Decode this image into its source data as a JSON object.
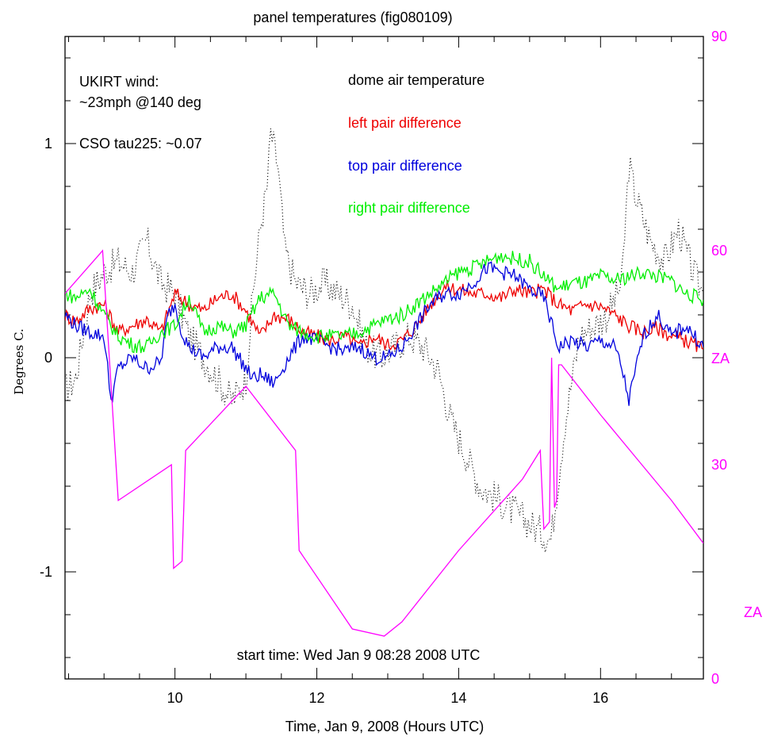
{
  "chart_data": {
    "type": "line",
    "title": "panel temperatures (fig080109)",
    "xlabel": "Time, Jan 9, 2008 (Hours UTC)",
    "ylabel": "Degrees C.",
    "y2label": "ZA",
    "xlim": [
      8.45,
      17.45
    ],
    "ylim": [
      -1.5,
      1.5
    ],
    "y2lim": [
      0,
      90
    ],
    "x_ticks": [
      10,
      12,
      14,
      16
    ],
    "y_ticks": [
      1,
      0,
      -1
    ],
    "y2_ticks": [
      90,
      60,
      30,
      0
    ],
    "colors": {
      "dome": "#000000",
      "left": "#ee0000",
      "top": "#0000dd",
      "right": "#00ee00",
      "za": "#ff00ff"
    },
    "annotations": {
      "wind_line1": "UKIRT wind:",
      "wind_line2": "~23mph @140 deg",
      "tau": "CSO tau225: ~0.07",
      "start_time": "start time: Wed Jan  9 08:28 2008 UTC",
      "za_right_label": "ZA"
    },
    "series": [
      {
        "name": "dome air temperature",
        "style": "dotted",
        "color": "#000000",
        "axis": "left",
        "x": [
          8.45,
          8.6,
          8.8,
          9.0,
          9.2,
          9.4,
          9.6,
          9.8,
          10.0,
          10.2,
          10.4,
          10.6,
          10.8,
          11.0,
          11.1,
          11.2,
          11.3,
          11.35,
          11.45,
          11.55,
          11.7,
          11.9,
          12.1,
          12.3,
          12.5,
          12.7,
          12.9,
          13.1,
          13.3,
          13.5,
          13.7,
          13.9,
          14.1,
          14.3,
          14.5,
          14.7,
          14.9,
          15.1,
          15.3,
          15.5,
          15.7,
          15.9,
          16.1,
          16.3,
          16.4,
          16.5,
          16.7,
          16.9,
          17.1,
          17.3,
          17.45
        ],
        "values": [
          -0.15,
          -0.1,
          0.3,
          0.4,
          0.45,
          0.4,
          0.55,
          0.35,
          0.3,
          0.1,
          0.0,
          -0.1,
          -0.2,
          -0.1,
          0.3,
          0.6,
          0.8,
          1.05,
          0.9,
          0.5,
          0.35,
          0.3,
          0.35,
          0.3,
          0.25,
          0.05,
          0.0,
          0.05,
          0.1,
          0.05,
          -0.05,
          -0.3,
          -0.45,
          -0.6,
          -0.65,
          -0.7,
          -0.75,
          -0.8,
          -0.85,
          -0.3,
          0.1,
          0.15,
          0.2,
          0.35,
          0.9,
          0.75,
          0.55,
          0.45,
          0.6,
          0.4,
          0.3
        ]
      },
      {
        "name": "left pair difference",
        "style": "solid",
        "color": "#ee0000",
        "axis": "left",
        "x": [
          8.45,
          8.6,
          8.8,
          9.0,
          9.2,
          9.4,
          9.6,
          9.8,
          10.0,
          10.2,
          10.4,
          10.6,
          10.8,
          11.0,
          11.2,
          11.4,
          11.6,
          11.8,
          12.0,
          12.2,
          12.4,
          12.6,
          12.8,
          13.0,
          13.2,
          13.4,
          13.6,
          13.8,
          14.0,
          14.2,
          14.4,
          14.6,
          14.8,
          15.0,
          15.2,
          15.4,
          15.6,
          15.8,
          16.0,
          16.2,
          16.4,
          16.6,
          16.8,
          17.0,
          17.2,
          17.45
        ],
        "values": [
          0.2,
          0.17,
          0.23,
          0.25,
          0.12,
          0.15,
          0.18,
          0.12,
          0.3,
          0.25,
          0.22,
          0.28,
          0.3,
          0.22,
          0.1,
          0.2,
          0.18,
          0.12,
          0.1,
          0.08,
          0.1,
          0.05,
          0.1,
          0.06,
          0.08,
          0.15,
          0.25,
          0.33,
          0.32,
          0.3,
          0.3,
          0.28,
          0.32,
          0.3,
          0.32,
          0.25,
          0.22,
          0.25,
          0.24,
          0.2,
          0.15,
          0.12,
          0.14,
          0.1,
          0.08,
          0.04
        ]
      },
      {
        "name": "top pair difference",
        "style": "solid",
        "color": "#0000dd",
        "axis": "left",
        "x": [
          8.45,
          8.6,
          8.8,
          9.0,
          9.05,
          9.1,
          9.2,
          9.4,
          9.6,
          9.8,
          9.9,
          10.0,
          10.1,
          10.2,
          10.4,
          10.6,
          10.8,
          11.0,
          11.1,
          11.2,
          11.4,
          11.6,
          11.8,
          12.0,
          12.2,
          12.4,
          12.6,
          12.8,
          13.0,
          13.2,
          13.4,
          13.6,
          13.8,
          14.0,
          14.2,
          14.4,
          14.6,
          14.8,
          15.0,
          15.2,
          15.3,
          15.4,
          15.6,
          15.8,
          16.0,
          16.2,
          16.3,
          16.4,
          16.6,
          16.8,
          17.0,
          17.2,
          17.45
        ],
        "values": [
          0.2,
          0.15,
          0.12,
          0.1,
          -0.05,
          -0.2,
          -0.05,
          0.0,
          -0.05,
          -0.02,
          0.2,
          0.25,
          0.12,
          0.05,
          0.0,
          0.05,
          0.05,
          -0.05,
          -0.1,
          -0.08,
          -0.12,
          0.0,
          0.1,
          0.08,
          0.05,
          0.03,
          0.05,
          0.0,
          0.0,
          0.05,
          0.15,
          0.25,
          0.3,
          0.3,
          0.35,
          0.42,
          0.4,
          0.38,
          0.32,
          0.28,
          0.17,
          0.05,
          0.08,
          0.05,
          0.08,
          0.05,
          -0.05,
          -0.2,
          0.1,
          0.2,
          0.1,
          0.15,
          0.05
        ]
      },
      {
        "name": "right pair difference",
        "style": "solid",
        "color": "#00ee00",
        "axis": "left",
        "x": [
          8.45,
          8.6,
          8.8,
          9.0,
          9.2,
          9.4,
          9.6,
          9.8,
          10.0,
          10.2,
          10.4,
          10.6,
          10.8,
          11.0,
          11.2,
          11.4,
          11.6,
          11.8,
          12.0,
          12.2,
          12.4,
          12.6,
          12.8,
          13.0,
          13.2,
          13.4,
          13.6,
          13.8,
          14.0,
          14.2,
          14.4,
          14.6,
          14.8,
          15.0,
          15.2,
          15.4,
          15.6,
          15.8,
          16.0,
          16.2,
          16.4,
          16.6,
          16.8,
          17.0,
          17.2,
          17.45
        ],
        "values": [
          0.3,
          0.28,
          0.32,
          0.2,
          0.1,
          0.06,
          0.05,
          0.12,
          0.15,
          0.28,
          0.12,
          0.15,
          0.12,
          0.15,
          0.28,
          0.3,
          0.15,
          0.12,
          0.1,
          0.1,
          0.1,
          0.12,
          0.15,
          0.18,
          0.2,
          0.25,
          0.3,
          0.35,
          0.4,
          0.42,
          0.45,
          0.48,
          0.46,
          0.45,
          0.38,
          0.32,
          0.35,
          0.35,
          0.38,
          0.36,
          0.38,
          0.4,
          0.38,
          0.36,
          0.3,
          0.27
        ]
      },
      {
        "name": "ZA",
        "style": "solid",
        "color": "#ff00ff",
        "axis": "right",
        "x": [
          8.45,
          8.98,
          9.2,
          9.95,
          9.98,
          10.1,
          10.15,
          11.0,
          11.7,
          11.75,
          12.5,
          12.95,
          13.2,
          14.0,
          14.9,
          15.15,
          15.2,
          15.28,
          15.31,
          15.35,
          15.38,
          15.41,
          15.45,
          16.0,
          16.5,
          17.0,
          17.45
        ],
        "values": [
          54,
          60,
          25,
          30,
          15.5,
          16.5,
          32,
          41,
          32,
          18,
          7,
          6,
          8,
          18,
          28,
          32,
          21,
          22,
          45,
          24,
          25,
          44,
          44,
          37,
          31,
          25,
          19
        ]
      }
    ]
  }
}
